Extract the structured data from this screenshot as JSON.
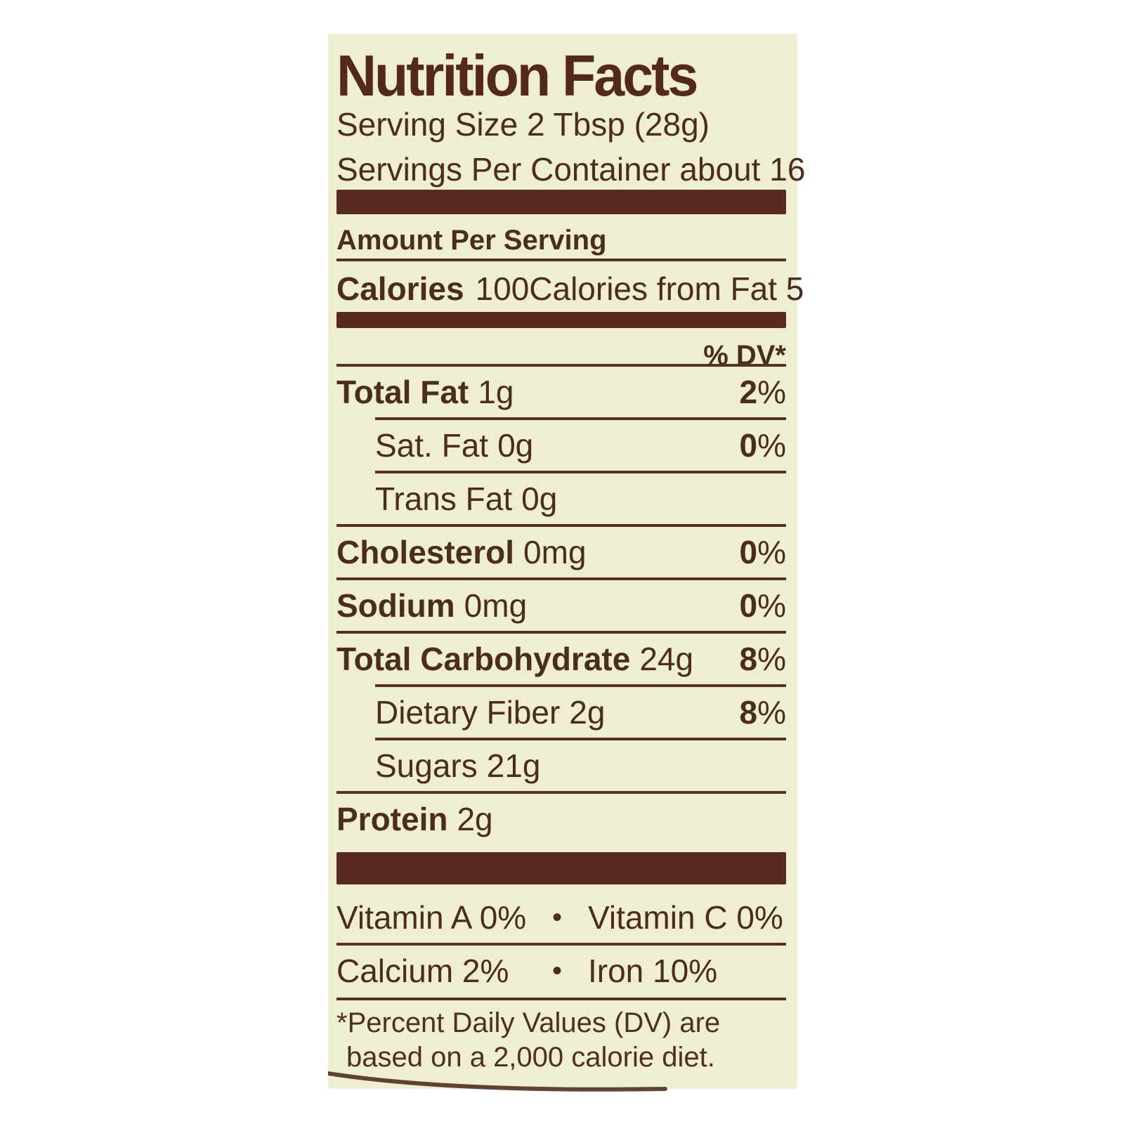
{
  "colors": {
    "paper": "#efedd2",
    "ink": "#4b2d1d",
    "bar": "#592b20",
    "page": "#ffffff"
  },
  "header": {
    "title": "Nutrition Facts",
    "serving_size": "Serving Size 2 Tbsp (28g)",
    "servings_per_container": "Servings Per Container about 16"
  },
  "amount_per_serving": "Amount Per Serving",
  "calories": {
    "label": "Calories",
    "value": "100",
    "from_fat": "Calories from Fat 5"
  },
  "dv_header": "% DV*",
  "nutrients": [
    {
      "name": "Total Fat",
      "amount": "1g",
      "dv": "2%",
      "bold": true,
      "indent": false,
      "rule_above": "full"
    },
    {
      "name": "Sat. Fat",
      "amount": "0g",
      "dv": "0%",
      "bold": false,
      "indent": true,
      "rule_above": "indent"
    },
    {
      "name": "Trans Fat",
      "amount": "0g",
      "dv": "",
      "bold": false,
      "indent": true,
      "rule_above": "indent"
    },
    {
      "name": "Cholesterol",
      "amount": "0mg",
      "dv": "0%",
      "bold": true,
      "indent": false,
      "rule_above": "full"
    },
    {
      "name": "Sodium",
      "amount": "0mg",
      "dv": "0%",
      "bold": true,
      "indent": false,
      "rule_above": "full"
    },
    {
      "name": "Total Carbohydrate",
      "amount": "24g",
      "dv": "8%",
      "bold": true,
      "indent": false,
      "rule_above": "full"
    },
    {
      "name": "Dietary Fiber",
      "amount": "2g",
      "dv": "8%",
      "bold": false,
      "indent": true,
      "rule_above": "indent"
    },
    {
      "name": "Sugars",
      "amount": "21g",
      "dv": "",
      "bold": false,
      "indent": true,
      "rule_above": "indent"
    },
    {
      "name": "Protein",
      "amount": "2g",
      "dv": "",
      "bold": true,
      "indent": false,
      "rule_above": "full"
    }
  ],
  "micronutrients": [
    {
      "left": "Vitamin A 0%",
      "right": "Vitamin C 0%"
    },
    {
      "left": "Calcium 2%",
      "right": "Iron 10%"
    }
  ],
  "bullet": "•",
  "footnote": {
    "line1": "*Percent Daily Values (DV) are",
    "line2": "based on a 2,000 calorie diet."
  }
}
